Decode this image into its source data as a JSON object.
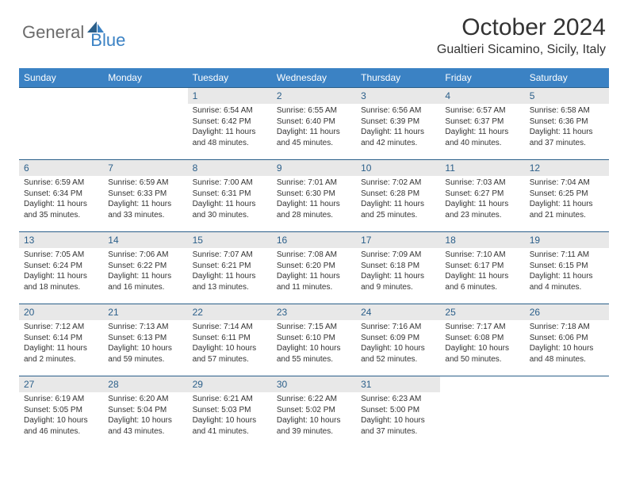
{
  "brand": {
    "part1": "General",
    "part2": "Blue"
  },
  "title": "October 2024",
  "location": "Gualtieri Sicamino, Sicily, Italy",
  "colors": {
    "header_bg": "#3b82c4",
    "daynum_bg": "#e8e8e8",
    "daynum_fg": "#2b5f8a",
    "border": "#2b5f8a",
    "logo_gray": "#6b6b6b",
    "logo_blue": "#3b82c4",
    "text": "#333333",
    "bg": "#ffffff"
  },
  "dow": [
    "Sunday",
    "Monday",
    "Tuesday",
    "Wednesday",
    "Thursday",
    "Friday",
    "Saturday"
  ],
  "weeks": [
    [
      {
        "n": "",
        "sr": "",
        "ss": "",
        "dl": ""
      },
      {
        "n": "",
        "sr": "",
        "ss": "",
        "dl": ""
      },
      {
        "n": "1",
        "sr": "Sunrise: 6:54 AM",
        "ss": "Sunset: 6:42 PM",
        "dl": "Daylight: 11 hours and 48 minutes."
      },
      {
        "n": "2",
        "sr": "Sunrise: 6:55 AM",
        "ss": "Sunset: 6:40 PM",
        "dl": "Daylight: 11 hours and 45 minutes."
      },
      {
        "n": "3",
        "sr": "Sunrise: 6:56 AM",
        "ss": "Sunset: 6:39 PM",
        "dl": "Daylight: 11 hours and 42 minutes."
      },
      {
        "n": "4",
        "sr": "Sunrise: 6:57 AM",
        "ss": "Sunset: 6:37 PM",
        "dl": "Daylight: 11 hours and 40 minutes."
      },
      {
        "n": "5",
        "sr": "Sunrise: 6:58 AM",
        "ss": "Sunset: 6:36 PM",
        "dl": "Daylight: 11 hours and 37 minutes."
      }
    ],
    [
      {
        "n": "6",
        "sr": "Sunrise: 6:59 AM",
        "ss": "Sunset: 6:34 PM",
        "dl": "Daylight: 11 hours and 35 minutes."
      },
      {
        "n": "7",
        "sr": "Sunrise: 6:59 AM",
        "ss": "Sunset: 6:33 PM",
        "dl": "Daylight: 11 hours and 33 minutes."
      },
      {
        "n": "8",
        "sr": "Sunrise: 7:00 AM",
        "ss": "Sunset: 6:31 PM",
        "dl": "Daylight: 11 hours and 30 minutes."
      },
      {
        "n": "9",
        "sr": "Sunrise: 7:01 AM",
        "ss": "Sunset: 6:30 PM",
        "dl": "Daylight: 11 hours and 28 minutes."
      },
      {
        "n": "10",
        "sr": "Sunrise: 7:02 AM",
        "ss": "Sunset: 6:28 PM",
        "dl": "Daylight: 11 hours and 25 minutes."
      },
      {
        "n": "11",
        "sr": "Sunrise: 7:03 AM",
        "ss": "Sunset: 6:27 PM",
        "dl": "Daylight: 11 hours and 23 minutes."
      },
      {
        "n": "12",
        "sr": "Sunrise: 7:04 AM",
        "ss": "Sunset: 6:25 PM",
        "dl": "Daylight: 11 hours and 21 minutes."
      }
    ],
    [
      {
        "n": "13",
        "sr": "Sunrise: 7:05 AM",
        "ss": "Sunset: 6:24 PM",
        "dl": "Daylight: 11 hours and 18 minutes."
      },
      {
        "n": "14",
        "sr": "Sunrise: 7:06 AM",
        "ss": "Sunset: 6:22 PM",
        "dl": "Daylight: 11 hours and 16 minutes."
      },
      {
        "n": "15",
        "sr": "Sunrise: 7:07 AM",
        "ss": "Sunset: 6:21 PM",
        "dl": "Daylight: 11 hours and 13 minutes."
      },
      {
        "n": "16",
        "sr": "Sunrise: 7:08 AM",
        "ss": "Sunset: 6:20 PM",
        "dl": "Daylight: 11 hours and 11 minutes."
      },
      {
        "n": "17",
        "sr": "Sunrise: 7:09 AM",
        "ss": "Sunset: 6:18 PM",
        "dl": "Daylight: 11 hours and 9 minutes."
      },
      {
        "n": "18",
        "sr": "Sunrise: 7:10 AM",
        "ss": "Sunset: 6:17 PM",
        "dl": "Daylight: 11 hours and 6 minutes."
      },
      {
        "n": "19",
        "sr": "Sunrise: 7:11 AM",
        "ss": "Sunset: 6:15 PM",
        "dl": "Daylight: 11 hours and 4 minutes."
      }
    ],
    [
      {
        "n": "20",
        "sr": "Sunrise: 7:12 AM",
        "ss": "Sunset: 6:14 PM",
        "dl": "Daylight: 11 hours and 2 minutes."
      },
      {
        "n": "21",
        "sr": "Sunrise: 7:13 AM",
        "ss": "Sunset: 6:13 PM",
        "dl": "Daylight: 10 hours and 59 minutes."
      },
      {
        "n": "22",
        "sr": "Sunrise: 7:14 AM",
        "ss": "Sunset: 6:11 PM",
        "dl": "Daylight: 10 hours and 57 minutes."
      },
      {
        "n": "23",
        "sr": "Sunrise: 7:15 AM",
        "ss": "Sunset: 6:10 PM",
        "dl": "Daylight: 10 hours and 55 minutes."
      },
      {
        "n": "24",
        "sr": "Sunrise: 7:16 AM",
        "ss": "Sunset: 6:09 PM",
        "dl": "Daylight: 10 hours and 52 minutes."
      },
      {
        "n": "25",
        "sr": "Sunrise: 7:17 AM",
        "ss": "Sunset: 6:08 PM",
        "dl": "Daylight: 10 hours and 50 minutes."
      },
      {
        "n": "26",
        "sr": "Sunrise: 7:18 AM",
        "ss": "Sunset: 6:06 PM",
        "dl": "Daylight: 10 hours and 48 minutes."
      }
    ],
    [
      {
        "n": "27",
        "sr": "Sunrise: 6:19 AM",
        "ss": "Sunset: 5:05 PM",
        "dl": "Daylight: 10 hours and 46 minutes."
      },
      {
        "n": "28",
        "sr": "Sunrise: 6:20 AM",
        "ss": "Sunset: 5:04 PM",
        "dl": "Daylight: 10 hours and 43 minutes."
      },
      {
        "n": "29",
        "sr": "Sunrise: 6:21 AM",
        "ss": "Sunset: 5:03 PM",
        "dl": "Daylight: 10 hours and 41 minutes."
      },
      {
        "n": "30",
        "sr": "Sunrise: 6:22 AM",
        "ss": "Sunset: 5:02 PM",
        "dl": "Daylight: 10 hours and 39 minutes."
      },
      {
        "n": "31",
        "sr": "Sunrise: 6:23 AM",
        "ss": "Sunset: 5:00 PM",
        "dl": "Daylight: 10 hours and 37 minutes."
      },
      {
        "n": "",
        "sr": "",
        "ss": "",
        "dl": ""
      },
      {
        "n": "",
        "sr": "",
        "ss": "",
        "dl": ""
      }
    ]
  ]
}
